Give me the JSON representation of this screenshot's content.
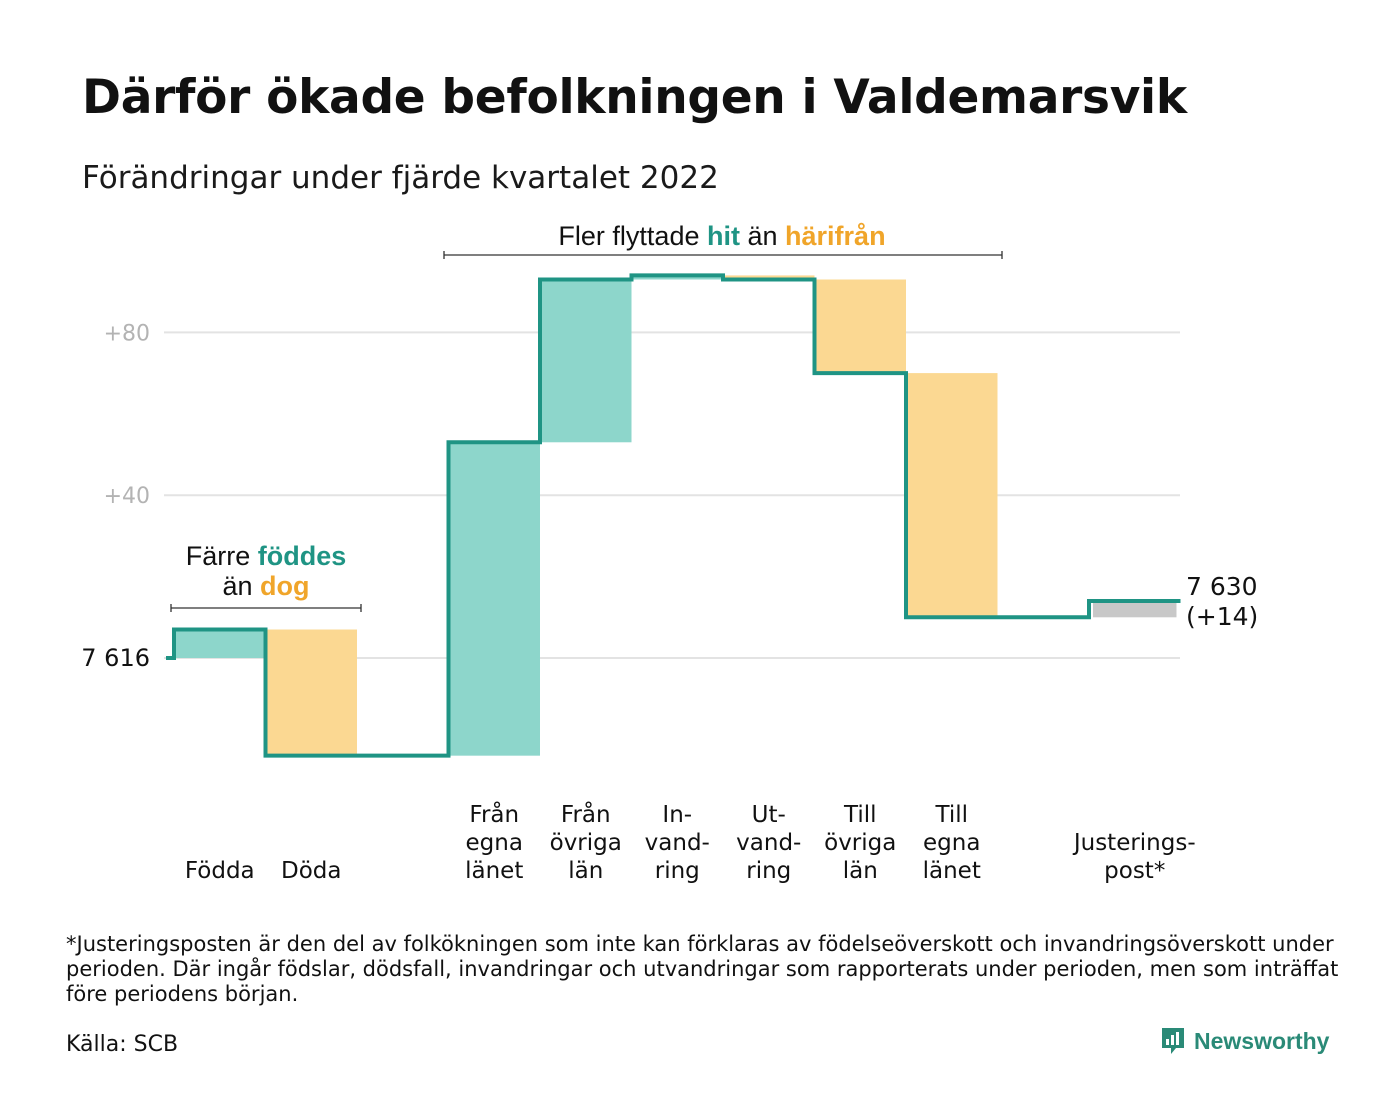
{
  "title": "Därför ökade befolkningen i Valdemarsvik",
  "subtitle": "Förändringar under fjärde kvartalet 2022",
  "colors": {
    "line": "#1f9484",
    "increase": "#8dd6cb",
    "decrease": "#fbd892",
    "adjustment": "#c8c8c8",
    "grid": "#e3e3e3",
    "tick": "#b3b3b3",
    "teal_text": "#1f9484",
    "orange_text": "#f0a52a"
  },
  "annotations": {
    "migration": {
      "prefix": "Fler flyttade ",
      "teal": "hit",
      "middle": " än ",
      "orange": "härifrån"
    },
    "births_line1_prefix": "Färre ",
    "births_line1_teal": "föddes",
    "births_line2_prefix": "än ",
    "births_line2_orange": "dog"
  },
  "chart_data": {
    "type": "waterfall",
    "start": {
      "label": "7 616",
      "value": 7616
    },
    "end": {
      "label_line1": "7 630",
      "label_line2": "(+14)",
      "value": 7630
    },
    "y_axis_baseline": 7616,
    "yticks": [
      {
        "label": "+80",
        "value": 80
      },
      {
        "label": "+40",
        "value": 40
      }
    ],
    "steps": [
      {
        "label": [
          "Födda"
        ],
        "change": 7,
        "kind": "increase"
      },
      {
        "label": [
          "Döda"
        ],
        "change": -31,
        "kind": "decrease"
      },
      {
        "label": [],
        "change": 0,
        "kind": "gap"
      },
      {
        "label": [
          "Från",
          "egna",
          "länet"
        ],
        "change": 77,
        "kind": "increase"
      },
      {
        "label": [
          "Från",
          "övriga",
          "län"
        ],
        "change": 40,
        "kind": "increase"
      },
      {
        "label": [
          "In-",
          "vand-",
          "ring"
        ],
        "change": 1,
        "kind": "increase"
      },
      {
        "label": [
          "Ut-",
          "vand-",
          "ring"
        ],
        "change": -1,
        "kind": "decrease"
      },
      {
        "label": [
          "Till",
          "övriga",
          "län"
        ],
        "change": -23,
        "kind": "decrease"
      },
      {
        "label": [
          "Till",
          "egna",
          "länet"
        ],
        "change": -60,
        "kind": "decrease"
      },
      {
        "label": [],
        "change": 0,
        "kind": "gap"
      },
      {
        "label": [
          "Justerings-",
          "post*"
        ],
        "change": 4,
        "kind": "adjustment"
      }
    ]
  },
  "footnote": "*Justeringsposten är den del av folkökningen som inte kan förklaras av födelseöverskott och invandringsöverskott under perioden. Där ingår födslar, dödsfall, invandringar och utvandringar som rapporterats under perioden, men som inträffat före periodens början.",
  "source": "Källa: SCB",
  "brand": {
    "name": "Newsworthy",
    "icon": "newsworthy-logo-icon"
  }
}
